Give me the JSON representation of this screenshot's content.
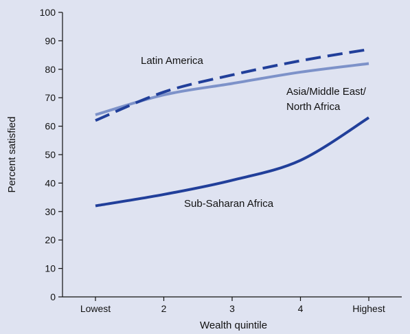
{
  "background": "#dfe3f1",
  "chart_data": {
    "type": "line",
    "title": "",
    "xlabel": "Wealth quintile",
    "ylabel": "Percent satisfied",
    "categories": [
      "Lowest",
      "2",
      "3",
      "4",
      "Highest"
    ],
    "yticks": [
      "0",
      "10",
      "20",
      "30",
      "40",
      "50",
      "60",
      "70",
      "80",
      "90",
      "100"
    ],
    "ylim": [
      0,
      100
    ],
    "grid": false,
    "legend": "none (series labeled directly on chart)",
    "series": [
      {
        "name": "Latin America",
        "values": [
          62,
          72,
          78,
          83,
          87
        ],
        "color": "#213f9a",
        "style": "dashed"
      },
      {
        "name": "Asia/Middle East/ North Africa",
        "label_lines": [
          "Asia/Middle East/",
          "North Africa"
        ],
        "values": [
          64,
          71,
          75,
          79,
          82
        ],
        "color": "#7d92c9",
        "style": "solid"
      },
      {
        "name": "Sub-Saharan Africa",
        "values": [
          32,
          36,
          41,
          48,
          63
        ],
        "color": "#213f9a",
        "style": "solid"
      }
    ]
  }
}
